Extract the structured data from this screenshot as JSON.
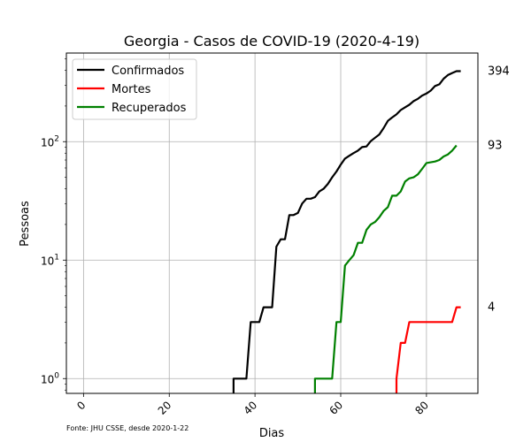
{
  "chart_data": {
    "type": "line",
    "title": "Georgia - Casos de COVID-19 (2020-4-19)",
    "xlabel": "Dias",
    "ylabel": "Pessoas",
    "source_note": "Fonte: JHU CSSE, desde 2020-1-22",
    "y_scale": "log",
    "xlim": [
      -4,
      92
    ],
    "ylim": [
      0.75,
      560
    ],
    "x_ticks": [
      0,
      20,
      40,
      60,
      80
    ],
    "y_ticks": [
      {
        "value": 1,
        "base": "10",
        "exp": "0"
      },
      {
        "value": 10,
        "base": "10",
        "exp": "1"
      },
      {
        "value": 100,
        "base": "10",
        "exp": "2"
      }
    ],
    "grid": true,
    "legend_position": "top-left",
    "series": [
      {
        "name": "Confirmados",
        "color": "#000000",
        "last_label": "394",
        "points": [
          [
            35,
            0.5
          ],
          [
            35,
            1
          ],
          [
            36,
            1
          ],
          [
            37,
            1
          ],
          [
            38,
            1
          ],
          [
            39,
            3
          ],
          [
            40,
            3
          ],
          [
            41,
            3
          ],
          [
            42,
            4
          ],
          [
            43,
            4
          ],
          [
            44,
            4
          ],
          [
            45,
            13
          ],
          [
            46,
            15
          ],
          [
            47,
            15
          ],
          [
            48,
            24
          ],
          [
            49,
            24
          ],
          [
            50,
            25
          ],
          [
            51,
            30
          ],
          [
            52,
            33
          ],
          [
            53,
            33
          ],
          [
            54,
            34
          ],
          [
            55,
            38
          ],
          [
            56,
            40
          ],
          [
            57,
            44
          ],
          [
            58,
            50
          ],
          [
            59,
            56
          ],
          [
            60,
            64
          ],
          [
            61,
            72
          ],
          [
            62,
            76
          ],
          [
            63,
            80
          ],
          [
            64,
            84
          ],
          [
            65,
            90
          ],
          [
            66,
            91
          ],
          [
            67,
            101
          ],
          [
            68,
            108
          ],
          [
            69,
            115
          ],
          [
            70,
            130
          ],
          [
            71,
            150
          ],
          [
            72,
            160
          ],
          [
            73,
            170
          ],
          [
            74,
            185
          ],
          [
            75,
            195
          ],
          [
            76,
            205
          ],
          [
            77,
            220
          ],
          [
            78,
            230
          ],
          [
            79,
            245
          ],
          [
            80,
            255
          ],
          [
            81,
            270
          ],
          [
            82,
            295
          ],
          [
            83,
            305
          ],
          [
            84,
            340
          ],
          [
            85,
            365
          ],
          [
            86,
            380
          ],
          [
            87,
            394
          ],
          [
            88,
            394
          ]
        ]
      },
      {
        "name": "Mortes",
        "color": "#ff0000",
        "last_label": "4",
        "points": [
          [
            73,
            0.5
          ],
          [
            73,
            1
          ],
          [
            74,
            2
          ],
          [
            75,
            2
          ],
          [
            76,
            3
          ],
          [
            77,
            3
          ],
          [
            78,
            3
          ],
          [
            79,
            3
          ],
          [
            80,
            3
          ],
          [
            81,
            3
          ],
          [
            82,
            3
          ],
          [
            83,
            3
          ],
          [
            84,
            3
          ],
          [
            85,
            3
          ],
          [
            86,
            3
          ],
          [
            87,
            4
          ],
          [
            88,
            4
          ]
        ]
      },
      {
        "name": "Recuperados",
        "color": "#008000",
        "last_label": "93",
        "points": [
          [
            54,
            0.5
          ],
          [
            54,
            1
          ],
          [
            55,
            1
          ],
          [
            56,
            1
          ],
          [
            57,
            1
          ],
          [
            58,
            1
          ],
          [
            59,
            3
          ],
          [
            60,
            3
          ],
          [
            61,
            9
          ],
          [
            62,
            10
          ],
          [
            63,
            11
          ],
          [
            64,
            14
          ],
          [
            65,
            14
          ],
          [
            66,
            18
          ],
          [
            67,
            20
          ],
          [
            68,
            21
          ],
          [
            69,
            23
          ],
          [
            70,
            26
          ],
          [
            71,
            28
          ],
          [
            72,
            35
          ],
          [
            73,
            35
          ],
          [
            74,
            38
          ],
          [
            75,
            46
          ],
          [
            76,
            49
          ],
          [
            77,
            50
          ],
          [
            78,
            53
          ],
          [
            79,
            59
          ],
          [
            80,
            66
          ],
          [
            81,
            67
          ],
          [
            82,
            68
          ],
          [
            83,
            70
          ],
          [
            84,
            75
          ],
          [
            85,
            78
          ],
          [
            86,
            84
          ],
          [
            87,
            93
          ]
        ]
      }
    ]
  }
}
